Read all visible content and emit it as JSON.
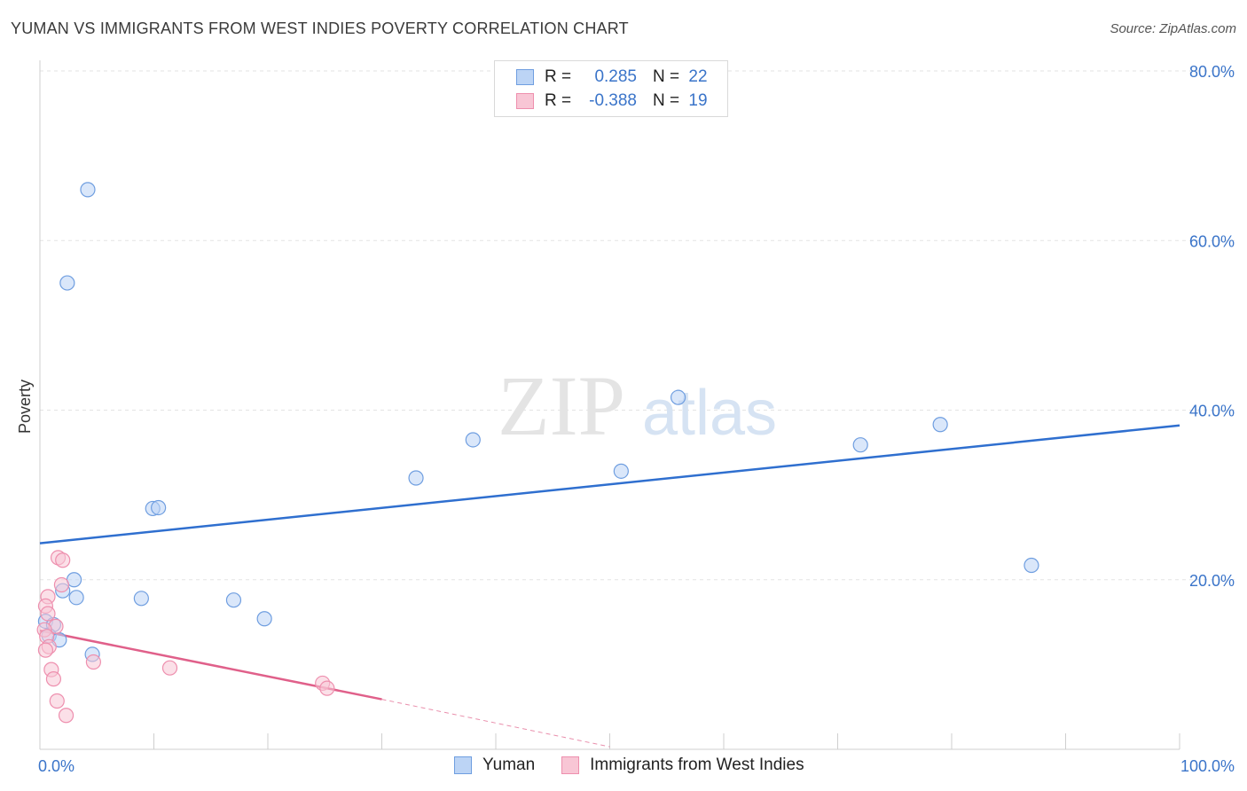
{
  "title": "YUMAN VS IMMIGRANTS FROM WEST INDIES POVERTY CORRELATION CHART",
  "source": "Source: ZipAtlas.com",
  "watermark": {
    "zip": "ZIP",
    "atlas": "atlas"
  },
  "colors": {
    "blue_fill": "#bcd4f5",
    "blue_stroke": "#6f9ee0",
    "blue_line": "#2f6fcf",
    "pink_fill": "#f8c6d5",
    "pink_stroke": "#ee8fae",
    "pink_line": "#e0608a",
    "axis_text": "#3a74c9",
    "grid": "#e3e3e3"
  },
  "legend": {
    "series": [
      {
        "r_label": "R =",
        "r_value": "0.285",
        "n_label": "N =",
        "n_value": "22"
      },
      {
        "r_label": "R =",
        "r_value": "-0.388",
        "n_label": "N =",
        "n_value": "19"
      }
    ]
  },
  "chart_data": {
    "type": "scatter",
    "title": "YUMAN VS IMMIGRANTS FROM WEST INDIES POVERTY CORRELATION CHART",
    "xlabel": "",
    "ylabel": "Poverty",
    "xlim": [
      0,
      100
    ],
    "ylim": [
      0,
      80
    ],
    "x_tick_labels": [
      "0.0%",
      "100.0%"
    ],
    "y_ticks": [
      20,
      40,
      60,
      80
    ],
    "y_tick_labels": [
      "20.0%",
      "40.0%",
      "60.0%",
      "80.0%"
    ],
    "grid": true,
    "series": [
      {
        "name": "Yuman",
        "points": [
          [
            4.2,
            66.0
          ],
          [
            2.4,
            55.0
          ],
          [
            9.9,
            28.4
          ],
          [
            10.4,
            28.5
          ],
          [
            17.0,
            17.6
          ],
          [
            3.0,
            20.0
          ],
          [
            3.2,
            17.9
          ],
          [
            2.0,
            18.7
          ],
          [
            0.5,
            15.1
          ],
          [
            1.2,
            14.7
          ],
          [
            0.8,
            13.4
          ],
          [
            1.7,
            12.9
          ],
          [
            4.6,
            11.2
          ],
          [
            8.9,
            17.8
          ],
          [
            19.7,
            15.4
          ],
          [
            33.0,
            32.0
          ],
          [
            38.0,
            36.5
          ],
          [
            51.0,
            32.8
          ],
          [
            56.0,
            41.5
          ],
          [
            72.0,
            35.9
          ],
          [
            79.0,
            38.3
          ],
          [
            87.0,
            21.7
          ]
        ],
        "trend": {
          "x": [
            0,
            100
          ],
          "y": [
            24.3,
            38.2
          ]
        }
      },
      {
        "name": "Immigrants from West Indies",
        "points": [
          [
            1.6,
            22.6
          ],
          [
            2.0,
            22.3
          ],
          [
            1.9,
            19.4
          ],
          [
            0.7,
            18.0
          ],
          [
            0.5,
            16.9
          ],
          [
            0.7,
            16.0
          ],
          [
            1.4,
            14.5
          ],
          [
            0.4,
            14.1
          ],
          [
            0.6,
            13.3
          ],
          [
            0.8,
            12.1
          ],
          [
            0.5,
            11.7
          ],
          [
            1.0,
            9.4
          ],
          [
            1.2,
            8.3
          ],
          [
            4.7,
            10.3
          ],
          [
            11.4,
            9.6
          ],
          [
            24.8,
            7.8
          ],
          [
            25.2,
            7.2
          ],
          [
            1.5,
            5.7
          ],
          [
            2.3,
            4.0
          ]
        ],
        "trend": {
          "x": [
            0,
            30
          ],
          "y": [
            14.0,
            5.9
          ],
          "dashed_x": [
            30,
            50
          ],
          "dashed_y": [
            5.9,
            0.3
          ]
        }
      }
    ]
  }
}
